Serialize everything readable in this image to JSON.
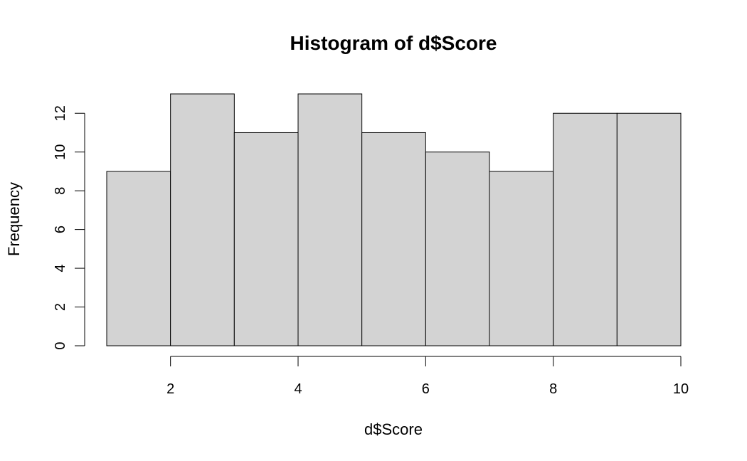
{
  "chart_data": {
    "type": "bar",
    "title": "Histogram of d$Score",
    "xlabel": "d$Score",
    "ylabel": "Frequency",
    "bins": [
      {
        "start": 1,
        "end": 2,
        "count": 9
      },
      {
        "start": 2,
        "end": 3,
        "count": 13
      },
      {
        "start": 3,
        "end": 4,
        "count": 11
      },
      {
        "start": 4,
        "end": 5,
        "count": 13
      },
      {
        "start": 5,
        "end": 6,
        "count": 11
      },
      {
        "start": 6,
        "end": 7,
        "count": 10
      },
      {
        "start": 7,
        "end": 8,
        "count": 9
      },
      {
        "start": 8,
        "end": 9,
        "count": 12
      },
      {
        "start": 9,
        "end": 10,
        "count": 12
      }
    ],
    "xlim": [
      1,
      10
    ],
    "ylim": [
      0,
      13
    ],
    "x_ticks": [
      2,
      4,
      6,
      8,
      10
    ],
    "y_ticks": [
      0,
      2,
      4,
      6,
      8,
      10,
      12
    ],
    "x_tick_labels": [
      "2",
      "4",
      "6",
      "8",
      "10"
    ],
    "y_tick_labels": [
      "0",
      "2",
      "4",
      "6",
      "8",
      "10",
      "12"
    ],
    "bar_color": "#d3d3d3",
    "grid": false
  }
}
